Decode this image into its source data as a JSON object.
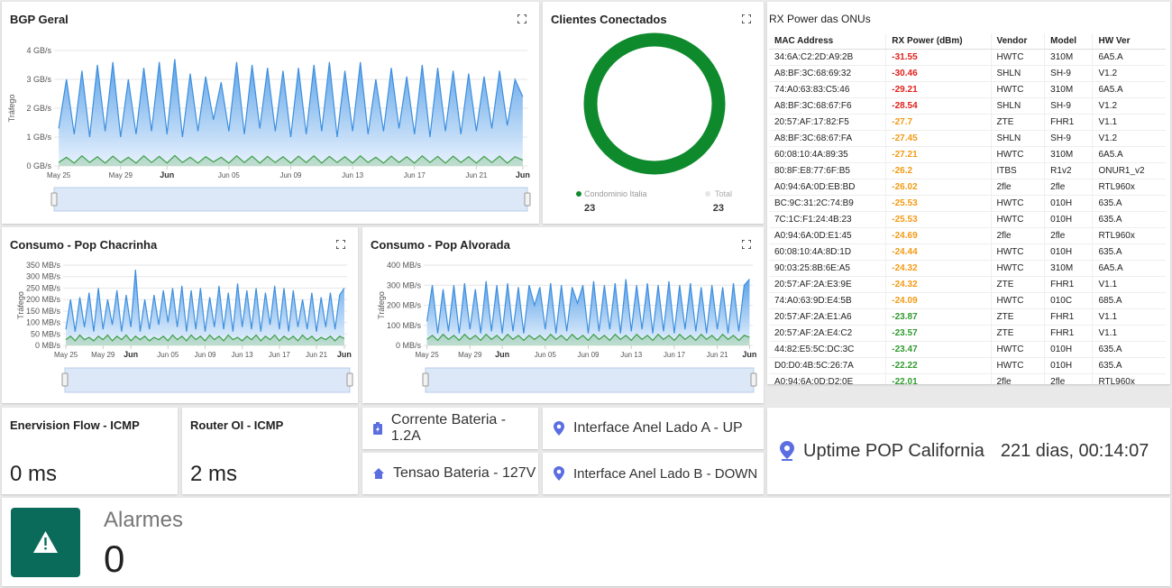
{
  "chart_data": [
    {
      "type": "line",
      "title": "BGP Geral",
      "ylabel": "Tráfego",
      "x": [
        0,
        0.5,
        1,
        1.5,
        2,
        2.5,
        3,
        3.5,
        4,
        4.5,
        5,
        5.5,
        6,
        6.5,
        7,
        7.5,
        8,
        8.5,
        9,
        9.5,
        10,
        10.5,
        11,
        11.5,
        12,
        12.5,
        13,
        13.5,
        14,
        14.5,
        15,
        15.5,
        16,
        16.5,
        17,
        17.5,
        18,
        18.5,
        19,
        19.5,
        20,
        20.5,
        21,
        21.5,
        22,
        22.5,
        23,
        23.5,
        24,
        24.5,
        25,
        25.5,
        26,
        26.5,
        27,
        27.5,
        28,
        28.5,
        29,
        29.5,
        30
      ],
      "xlim": [
        -0.3,
        30.3
      ],
      "xticks": [
        {
          "value": 0,
          "label": "May 25"
        },
        {
          "value": 4,
          "label": "May 29"
        },
        {
          "value": 7,
          "label": "Jun"
        },
        {
          "value": 11,
          "label": "Jun 05"
        },
        {
          "value": 15,
          "label": "Jun 09"
        },
        {
          "value": 19,
          "label": "Jun 13"
        },
        {
          "value": 23,
          "label": "Jun 17"
        },
        {
          "value": 27,
          "label": "Jun 21"
        },
        {
          "value": 30,
          "label": "Jun"
        }
      ],
      "ylim": [
        0,
        4
      ],
      "yticks": [
        {
          "value": 0,
          "label": "0 GB/s"
        },
        {
          "value": 1,
          "label": "1 GB/s"
        },
        {
          "value": 2,
          "label": "2 GB/s"
        },
        {
          "value": 3,
          "label": "3 GB/s"
        },
        {
          "value": 4,
          "label": "4 GB/s"
        }
      ],
      "series": [
        {
          "color": "#3d8fdf",
          "values": [
            1.3,
            3.0,
            1.1,
            3.3,
            1.0,
            3.5,
            1.2,
            3.6,
            1.0,
            3.0,
            1.1,
            3.4,
            1.2,
            3.6,
            1.1,
            3.7,
            1.0,
            3.2,
            1.2,
            3.1,
            1.6,
            2.9,
            1.2,
            3.6,
            1.1,
            3.5,
            1.3,
            3.4,
            1.2,
            3.3,
            1.0,
            3.4,
            1.1,
            3.5,
            1.2,
            3.6,
            1.0,
            3.3,
            1.2,
            3.6,
            1.1,
            3.0,
            1.2,
            3.4,
            1.3,
            3.1,
            1.1,
            3.5,
            1.0,
            3.4,
            1.2,
            3.3,
            1.1,
            3.2,
            1.2,
            3.1,
            1.3,
            3.3,
            1.4,
            3.0,
            2.4
          ]
        },
        {
          "color": "#3e9e45",
          "values": [
            0.12,
            0.3,
            0.1,
            0.35,
            0.12,
            0.32,
            0.1,
            0.34,
            0.12,
            0.3,
            0.1,
            0.35,
            0.12,
            0.33,
            0.1,
            0.36,
            0.12,
            0.3,
            0.1,
            0.32,
            0.14,
            0.3,
            0.1,
            0.35,
            0.12,
            0.34,
            0.1,
            0.33,
            0.12,
            0.32,
            0.1,
            0.34,
            0.12,
            0.35,
            0.1,
            0.33,
            0.12,
            0.32,
            0.1,
            0.35,
            0.12,
            0.3,
            0.1,
            0.34,
            0.12,
            0.32,
            0.1,
            0.35,
            0.12,
            0.33,
            0.1,
            0.34,
            0.12,
            0.32,
            0.1,
            0.33,
            0.12,
            0.34,
            0.1,
            0.32,
            0.2
          ]
        }
      ]
    },
    {
      "type": "donut",
      "title": "Clientes Conectados",
      "categories": [
        "Condominio Italia",
        "Total"
      ],
      "values": [
        23,
        23
      ],
      "colors": [
        "#0e8a2d",
        "#e6e6e6"
      ]
    },
    {
      "type": "line",
      "title": "Consumo - Pop Chacrinha",
      "ylabel": "Tráfego",
      "x": [
        0,
        0.5,
        1,
        1.5,
        2,
        2.5,
        3,
        3.5,
        4,
        4.5,
        5,
        5.5,
        6,
        6.5,
        7,
        7.5,
        8,
        8.5,
        9,
        9.5,
        10,
        10.5,
        11,
        11.5,
        12,
        12.5,
        13,
        13.5,
        14,
        14.5,
        15,
        15.5,
        16,
        16.5,
        17,
        17.5,
        18,
        18.5,
        19,
        19.5,
        20,
        20.5,
        21,
        21.5,
        22,
        22.5,
        23,
        23.5,
        24,
        24.5,
        25,
        25.5,
        26,
        26.5,
        27,
        27.5,
        28,
        28.5,
        29,
        29.5,
        30
      ],
      "xlim": [
        -0.3,
        30.3
      ],
      "xticks": [
        {
          "value": 0,
          "label": "May 25"
        },
        {
          "value": 4,
          "label": "May 29"
        },
        {
          "value": 7,
          "label": "Jun"
        },
        {
          "value": 11,
          "label": "Jun 05"
        },
        {
          "value": 15,
          "label": "Jun 09"
        },
        {
          "value": 19,
          "label": "Jun 13"
        },
        {
          "value": 23,
          "label": "Jun 17"
        },
        {
          "value": 27,
          "label": "Jun 21"
        },
        {
          "value": 30,
          "label": "Jun"
        }
      ],
      "ylim": [
        0,
        350
      ],
      "yticks": [
        {
          "value": 0,
          "label": "0 MB/s"
        },
        {
          "value": 50,
          "label": "50 MB/s"
        },
        {
          "value": 100,
          "label": "100 MB/s"
        },
        {
          "value": 150,
          "label": "150 MB/s"
        },
        {
          "value": 200,
          "label": "200 MB/s"
        },
        {
          "value": 250,
          "label": "250 MB/s"
        },
        {
          "value": 300,
          "label": "300 MB/s"
        },
        {
          "value": 350,
          "label": "350 MB/s"
        }
      ],
      "series": [
        {
          "color": "#3d8fdf",
          "values": [
            70,
            200,
            60,
            210,
            80,
            230,
            60,
            250,
            70,
            200,
            90,
            240,
            60,
            220,
            80,
            330,
            60,
            200,
            70,
            220,
            90,
            240,
            100,
            250,
            80,
            260,
            60,
            240,
            70,
            250,
            60,
            210,
            80,
            260,
            70,
            230,
            60,
            270,
            80,
            240,
            70,
            250,
            60,
            230,
            90,
            260,
            70,
            250,
            60,
            240,
            80,
            200,
            70,
            230,
            60,
            210,
            80,
            230,
            70,
            220,
            250
          ]
        },
        {
          "color": "#3e9e45",
          "values": [
            25,
            40,
            20,
            45,
            25,
            35,
            20,
            40,
            25,
            45,
            20,
            40,
            25,
            45,
            20,
            40,
            25,
            40,
            20,
            35,
            25,
            40,
            20,
            45,
            25,
            40,
            20,
            45,
            25,
            40,
            20,
            45,
            25,
            40,
            20,
            45,
            25,
            35,
            20,
            40,
            25,
            45,
            20,
            40,
            25,
            45,
            20,
            40,
            25,
            40,
            20,
            45,
            25,
            40,
            20,
            35,
            25,
            40,
            20,
            40,
            30
          ]
        }
      ]
    },
    {
      "type": "line",
      "title": "Consumo - Pop Alvorada",
      "ylabel": "Tráfego",
      "x": [
        0,
        0.5,
        1,
        1.5,
        2,
        2.5,
        3,
        3.5,
        4,
        4.5,
        5,
        5.5,
        6,
        6.5,
        7,
        7.5,
        8,
        8.5,
        9,
        9.5,
        10,
        10.5,
        11,
        11.5,
        12,
        12.5,
        13,
        13.5,
        14,
        14.5,
        15,
        15.5,
        16,
        16.5,
        17,
        17.5,
        18,
        18.5,
        19,
        19.5,
        20,
        20.5,
        21,
        21.5,
        22,
        22.5,
        23,
        23.5,
        24,
        24.5,
        25,
        25.5,
        26,
        26.5,
        27,
        27.5,
        28,
        28.5,
        29,
        29.5,
        30
      ],
      "xlim": [
        -0.3,
        30.3
      ],
      "xticks": [
        {
          "value": 0,
          "label": "May 25"
        },
        {
          "value": 4,
          "label": "May 29"
        },
        {
          "value": 7,
          "label": "Jun"
        },
        {
          "value": 11,
          "label": "Jun 05"
        },
        {
          "value": 15,
          "label": "Jun 09"
        },
        {
          "value": 19,
          "label": "Jun 13"
        },
        {
          "value": 23,
          "label": "Jun 17"
        },
        {
          "value": 27,
          "label": "Jun 21"
        },
        {
          "value": 30,
          "label": "Jun"
        }
      ],
      "ylim": [
        0,
        400
      ],
      "yticks": [
        {
          "value": 0,
          "label": "0 MB/s"
        },
        {
          "value": 100,
          "label": "100 MB/s"
        },
        {
          "value": 200,
          "label": "200 MB/s"
        },
        {
          "value": 300,
          "label": "300 MB/s"
        },
        {
          "value": 400,
          "label": "400 MB/s"
        }
      ],
      "series": [
        {
          "color": "#3d8fdf",
          "values": [
            120,
            300,
            60,
            280,
            70,
            300,
            60,
            310,
            80,
            280,
            60,
            320,
            70,
            300,
            60,
            310,
            70,
            290,
            60,
            300,
            200,
            290,
            80,
            310,
            60,
            300,
            70,
            290,
            210,
            300,
            60,
            320,
            70,
            300,
            80,
            310,
            60,
            330,
            70,
            300,
            80,
            310,
            60,
            300,
            70,
            320,
            60,
            300,
            80,
            310,
            70,
            290,
            60,
            300,
            80,
            290,
            60,
            310,
            70,
            300,
            330
          ]
        },
        {
          "color": "#3e9e45",
          "values": [
            30,
            50,
            25,
            55,
            30,
            50,
            25,
            55,
            30,
            50,
            25,
            55,
            30,
            50,
            25,
            55,
            30,
            50,
            25,
            50,
            30,
            50,
            25,
            55,
            30,
            50,
            25,
            55,
            30,
            50,
            25,
            55,
            30,
            50,
            25,
            55,
            30,
            50,
            25,
            55,
            30,
            50,
            25,
            55,
            30,
            50,
            25,
            55,
            30,
            50,
            25,
            55,
            30,
            50,
            25,
            55,
            30,
            50,
            25,
            50,
            40
          ]
        }
      ]
    }
  ],
  "rx_table": {
    "title": "RX Power das ONUs",
    "columns": [
      "MAC Address",
      "RX Power (dBm)",
      "Vendor",
      "Model",
      "HW Ver"
    ],
    "rows": [
      [
        "34:6A:C2:2D:A9:2B",
        -31.55,
        "HWTC",
        "310M",
        "6A5.A"
      ],
      [
        "A8:BF:3C:68:69:32",
        -30.46,
        "SHLN",
        "SH-9",
        "V1.2"
      ],
      [
        "74:A0:63:83:C5:46",
        -29.21,
        "HWTC",
        "310M",
        "6A5.A"
      ],
      [
        "A8:BF:3C:68:67:F6",
        -28.54,
        "SHLN",
        "SH-9",
        "V1.2"
      ],
      [
        "20:57:AF:17:82:F5",
        -27.7,
        "ZTE",
        "FHR1",
        "V1.1"
      ],
      [
        "A8:BF:3C:68:67:FA",
        -27.45,
        "SHLN",
        "SH-9",
        "V1.2"
      ],
      [
        "60:08:10:4A:89:35",
        -27.21,
        "HWTC",
        "310M",
        "6A5.A"
      ],
      [
        "80:8F:E8:77:6F:B5",
        -26.2,
        "ITBS",
        "R1v2",
        "ONUR1_v2"
      ],
      [
        "A0:94:6A:0D:EB:BD",
        -26.02,
        "2fle",
        "2fle",
        "RTL960x"
      ],
      [
        "BC:9C:31:2C:74:B9",
        -25.53,
        "HWTC",
        "010H",
        "635.A"
      ],
      [
        "7C:1C:F1:24:4B:23",
        -25.53,
        "HWTC",
        "010H",
        "635.A"
      ],
      [
        "A0:94:6A:0D:E1:45",
        -24.69,
        "2fle",
        "2fle",
        "RTL960x"
      ],
      [
        "60:08:10:4A:8D:1D",
        -24.44,
        "HWTC",
        "010H",
        "635.A"
      ],
      [
        "90:03:25:8B:6E:A5",
        -24.32,
        "HWTC",
        "310M",
        "6A5.A"
      ],
      [
        "20:57:AF:2A:E3:9E",
        -24.32,
        "ZTE",
        "FHR1",
        "V1.1"
      ],
      [
        "74:A0:63:9D:E4:5B",
        -24.09,
        "HWTC",
        "010C",
        "685.A"
      ],
      [
        "20:57:AF:2A:E1:A6",
        -23.87,
        "ZTE",
        "FHR1",
        "V1.1"
      ],
      [
        "20:57:AF:2A:E4:C2",
        -23.57,
        "ZTE",
        "FHR1",
        "V1.1"
      ],
      [
        "44:82:E5:5C:DC:3C",
        -23.47,
        "HWTC",
        "010H",
        "635.A"
      ],
      [
        "D0:D0:4B:5C:26:7A",
        -22.22,
        "HWTC",
        "010H",
        "635.A"
      ],
      [
        "A0:94:6A:0D:D2:0E",
        -22.01,
        "2fle",
        "2fle",
        "RTL960x"
      ]
    ]
  },
  "stats": [
    {
      "title": "Enervision Flow - ICMP",
      "value": "0 ms"
    },
    {
      "title": "Router OI - ICMP",
      "value": "2 ms"
    }
  ],
  "buttons": [
    "Corrente Bateria - 1.2A",
    "Tensao Bateria - 127V",
    "Interface Anel Lado A - UP",
    "Interface Anel Lado B - DOWN"
  ],
  "uptime": {
    "label": "Uptime POP California",
    "value": "221 dias, 00:14:07"
  },
  "alarm": {
    "label": "Alarmes",
    "value": 0
  }
}
